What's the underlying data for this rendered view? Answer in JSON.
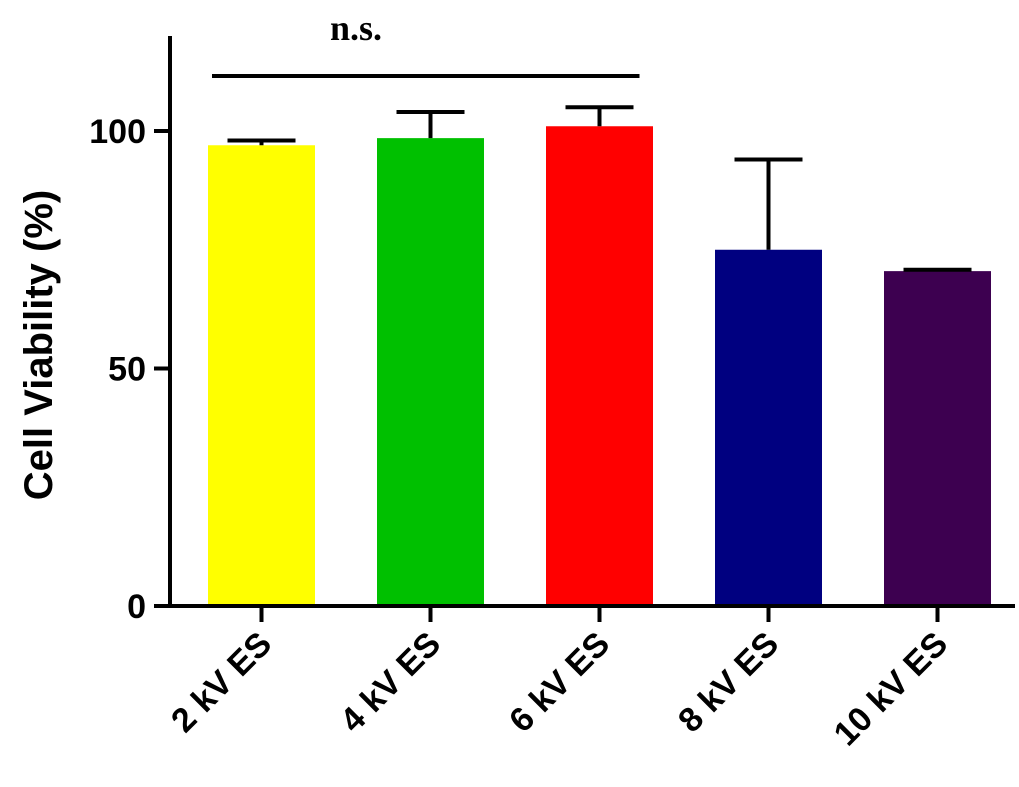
{
  "chart_data": {
    "type": "bar",
    "title": "",
    "xlabel": "",
    "ylabel": "Cell Viability (%)",
    "ylim": [
      0,
      120
    ],
    "yticks": [
      0,
      50,
      100
    ],
    "ytick_labels": [
      "0",
      "50",
      "100"
    ],
    "categories": [
      "2 kV ES",
      "4 kV ES",
      "6 kV ES",
      "8 kV ES",
      "10 kV ES"
    ],
    "values": [
      97,
      98.5,
      101,
      75,
      70.5
    ],
    "error_plus": [
      1,
      5.5,
      4,
      19,
      0.3
    ],
    "colors": [
      "#ffff00",
      "#00c000",
      "#ff0000",
      "#000080",
      "#3d0050"
    ],
    "grid": false,
    "legend": "none",
    "annotations": [
      {
        "text": "n.s.",
        "type": "bracket",
        "from_category": "2 kV ES",
        "to_category": "6 kV ES"
      }
    ]
  }
}
